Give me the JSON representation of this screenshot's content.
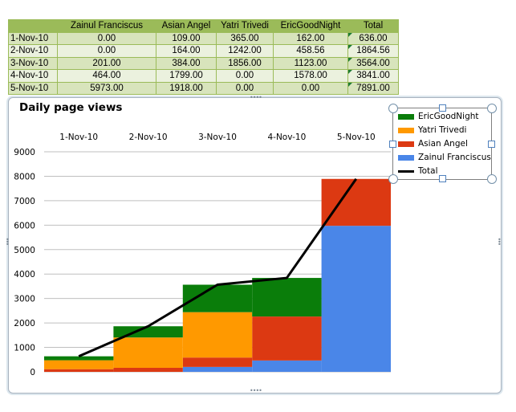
{
  "sheet": {
    "headers": [
      "",
      "Zainul Franciscus",
      "Asian Angel",
      "Yatri Trivedi",
      "EricGoodNight",
      "Total"
    ],
    "rows": [
      [
        "1-Nov-10",
        "0.00",
        "109.00",
        "365.00",
        "162.00",
        "636.00"
      ],
      [
        "2-Nov-10",
        "0.00",
        "164.00",
        "1242.00",
        "458.56",
        "1864.56"
      ],
      [
        "3-Nov-10",
        "201.00",
        "384.00",
        "1856.00",
        "1123.00",
        "3564.00"
      ],
      [
        "4-Nov-10",
        "464.00",
        "1799.00",
        "0.00",
        "1578.00",
        "3841.00"
      ],
      [
        "5-Nov-10",
        "5973.00",
        "1918.00",
        "0.00",
        "0.00",
        "7891.00"
      ]
    ]
  },
  "chart_data": {
    "type": "bar",
    "stacked": true,
    "title": "Daily page views",
    "categories": [
      "1-Nov-10",
      "2-Nov-10",
      "3-Nov-10",
      "4-Nov-10",
      "5-Nov-10"
    ],
    "series": [
      {
        "name": "Zainul Franciscus",
        "color": "#4a86e8",
        "values": [
          0,
          0,
          201,
          464,
          5973
        ]
      },
      {
        "name": "Asian Angel",
        "color": "#dc3912",
        "values": [
          109,
          164,
          384,
          1799,
          1918
        ]
      },
      {
        "name": "Yatri Trivedi",
        "color": "#ff9900",
        "values": [
          365,
          1242,
          1856,
          0,
          0
        ]
      },
      {
        "name": "EricGoodNight",
        "color": "#0a7d0a",
        "values": [
          162,
          458.56,
          1123,
          1578,
          0
        ]
      }
    ],
    "line": {
      "name": "Total",
      "color": "#000000",
      "values": [
        636,
        1864.56,
        3564,
        3841,
        7891
      ]
    },
    "ylim": [
      0,
      9000
    ],
    "yticks": [
      "0",
      "1000",
      "2000",
      "3000",
      "4000",
      "5000",
      "6000",
      "7000",
      "8000",
      "9000"
    ],
    "xaxis_position": "top",
    "grid": true,
    "legend_position": "top-right",
    "legend": [
      "EricGoodNight",
      "Yatri Trivedi",
      "Asian Angel",
      "Zainul Franciscus",
      "Total"
    ]
  }
}
